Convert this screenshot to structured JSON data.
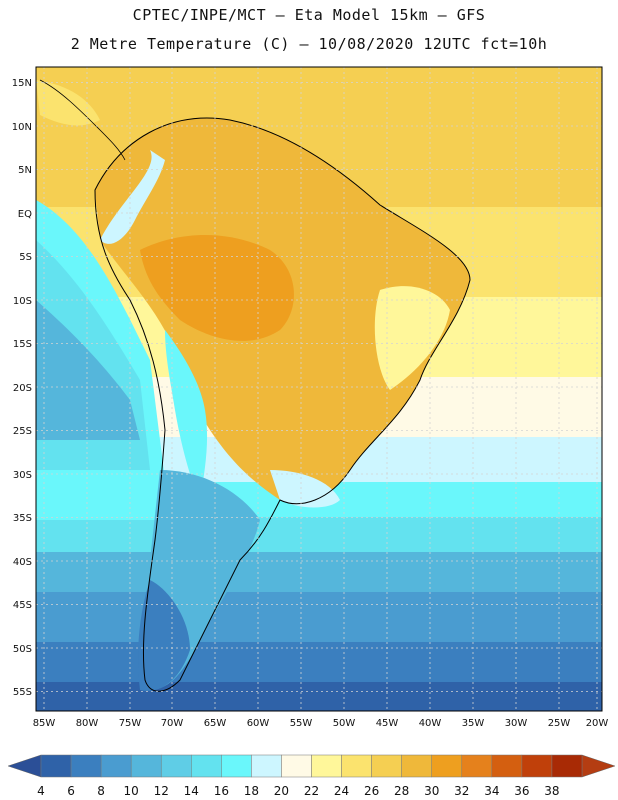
{
  "title_line1": "CPTEC/INPE/MCT –  Eta Model 15km – GFS",
  "title_line2": "2 Metre Temperature (C) – 10/08/2020 12UTC fct=10h",
  "map": {
    "lat_labels": [
      "15N",
      "10N",
      "5N",
      "EQ",
      "5S",
      "10S",
      "15S",
      "20S",
      "25S",
      "30S",
      "35S",
      "40S",
      "45S",
      "50S",
      "55S"
    ],
    "lon_labels": [
      "85W",
      "80W",
      "75W",
      "70W",
      "65W",
      "60W",
      "55W",
      "50W",
      "45W",
      "40W",
      "35W",
      "30W",
      "25W",
      "20W"
    ]
  },
  "colorbar": {
    "levels": [
      "4",
      "6",
      "8",
      "10",
      "12",
      "14",
      "16",
      "18",
      "20",
      "22",
      "24",
      "26",
      "28",
      "30",
      "32",
      "34",
      "36",
      "38"
    ],
    "colors": [
      "#2f62a8",
      "#3b7fbf",
      "#4a9cd0",
      "#55b6db",
      "#5fcde6",
      "#63e2ef",
      "#6af7fb",
      "#cdf6ff",
      "#fffae6",
      "#fff79a",
      "#fbe36e",
      "#f5cf52",
      "#efb83a",
      "#ee9f1f",
      "#e5811c",
      "#d45f10",
      "#c0400a",
      "#a82a05"
    ],
    "low_color": "#2b4f97",
    "high_color": "#b43d12"
  }
}
